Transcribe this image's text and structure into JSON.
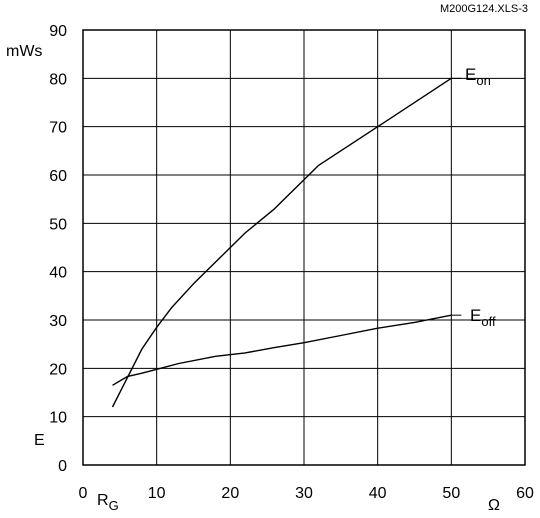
{
  "chart_data": {
    "type": "line",
    "reference": "M200G124.XLS-3",
    "ylabel_unit": "mWs",
    "ylabel": "E",
    "xlabel": "R",
    "xlabel_sub": "G",
    "xunit": "Ω",
    "xlim": [
      0,
      60
    ],
    "ylim": [
      0,
      90
    ],
    "xticks": [
      0,
      10,
      20,
      30,
      40,
      50,
      60
    ],
    "yticks": [
      0,
      10,
      20,
      30,
      40,
      50,
      60,
      70,
      80,
      90
    ],
    "grid": true,
    "series": [
      {
        "name": "E",
        "name_sub": "on",
        "color": "#000000",
        "points": [
          [
            4,
            12
          ],
          [
            6,
            18
          ],
          [
            8,
            24
          ],
          [
            10,
            28.5
          ],
          [
            12,
            32.5
          ],
          [
            15,
            37.5
          ],
          [
            18,
            42
          ],
          [
            22,
            48
          ],
          [
            26,
            53
          ],
          [
            32,
            62
          ],
          [
            40,
            70
          ],
          [
            50,
            80
          ]
        ]
      },
      {
        "name": "E",
        "name_sub": "off",
        "color": "#000000",
        "points": [
          [
            4,
            16.5
          ],
          [
            6,
            18.3
          ],
          [
            8,
            19
          ],
          [
            10,
            19.8
          ],
          [
            13,
            21
          ],
          [
            18,
            22.5
          ],
          [
            22,
            23.2
          ],
          [
            26,
            24.3
          ],
          [
            30,
            25.3
          ],
          [
            35,
            26.8
          ],
          [
            40,
            28.3
          ],
          [
            45,
            29.5
          ],
          [
            50,
            31
          ]
        ]
      }
    ]
  }
}
